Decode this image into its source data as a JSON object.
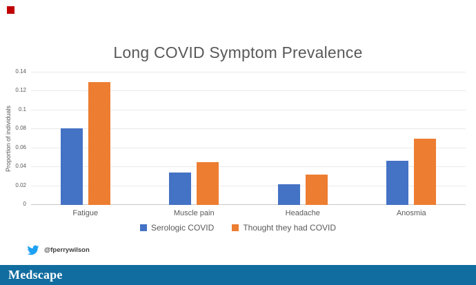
{
  "slide": {
    "decoration": {
      "top_left_square_color": "#c00000"
    },
    "footer": {
      "twitter_handle": "@fperrywilson",
      "twitter_icon_color": "#1da1f2",
      "brand": "Medscape",
      "brand_bar_color": "#116da0"
    }
  },
  "colors": {
    "title_text": "#595959",
    "axis_text": "#595959",
    "gridline": "#e9e9e9",
    "axis_baseline": "#c8c8c8"
  },
  "chart_data": {
    "type": "bar",
    "title": "Long COVID Symptom Prevalence",
    "xlabel": "",
    "ylabel": "Proportion of individuals",
    "categories": [
      "Fatigue",
      "Muscle pain",
      "Headache",
      "Anosmia"
    ],
    "series": [
      {
        "name": "Serologic COVID",
        "color": "#4472c4",
        "values": [
          0.081,
          0.034,
          0.022,
          0.047
        ]
      },
      {
        "name": "Thought they had COVID",
        "color": "#ed7d31",
        "values": [
          0.13,
          0.045,
          0.032,
          0.07
        ]
      }
    ],
    "ylim": [
      0,
      0.14
    ],
    "ytick_labels": [
      "0",
      "0.02",
      "0.04",
      "0.06",
      "0.08",
      "0.1",
      "0.12",
      "0.14"
    ],
    "grid": "horizontal",
    "legend_position": "bottom"
  }
}
